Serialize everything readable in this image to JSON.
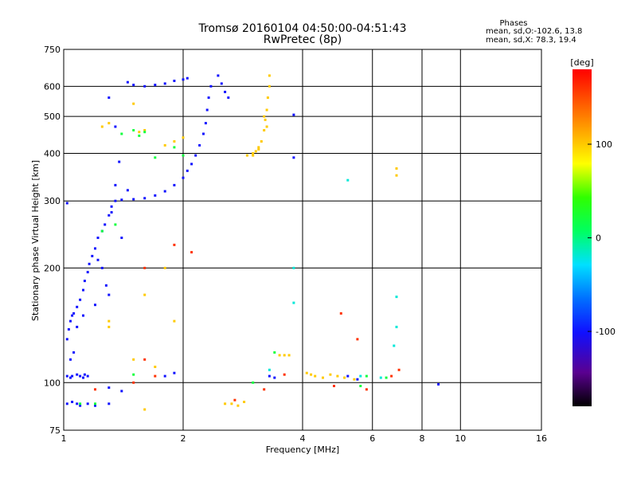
{
  "chart_data": {
    "type": "scatter",
    "title": "Tromsø 20160104 04:50:00-04:51:43",
    "subtitle": "RwPretec (8p)",
    "xlabel": "Frequency [MHz]",
    "ylabel": "Stationary phase Virtual Height [km]",
    "x_scale": "log",
    "y_scale": "log",
    "xlim": [
      1,
      16
    ],
    "ylim": [
      75,
      750
    ],
    "x_ticks": [
      1,
      2,
      4,
      6,
      8,
      10,
      16
    ],
    "y_ticks": [
      75,
      100,
      200,
      300,
      400,
      500,
      600,
      750
    ],
    "grid": true,
    "stats": {
      "heading": "Phases",
      "line_o": "mean, sd,O:-102.6, 13.8",
      "line_x": "mean, sd,X: 78.3, 19.4"
    },
    "colorbar": {
      "label": "[deg]",
      "min": -180,
      "max": 180,
      "ticks": [
        {
          "value": 100,
          "label": "100"
        },
        {
          "value": 0,
          "label": "0"
        },
        {
          "value": -100,
          "label": "-100"
        }
      ]
    },
    "series": [
      {
        "points": [
          [
            1.02,
            104
          ],
          [
            1.05,
            104
          ],
          [
            1.08,
            105
          ],
          [
            1.1,
            104
          ],
          [
            1.13,
            105
          ],
          [
            1.15,
            104
          ],
          [
            1.04,
            103
          ],
          [
            1.12,
            103
          ],
          [
            1.02,
            88
          ],
          [
            1.05,
            89
          ],
          [
            1.08,
            88
          ],
          [
            1.1,
            87
          ],
          [
            1.15,
            88
          ],
          [
            1.2,
            87
          ],
          [
            1.3,
            88
          ],
          [
            1.02,
            130
          ],
          [
            1.03,
            138
          ],
          [
            1.04,
            145
          ],
          [
            1.05,
            150
          ],
          [
            1.06,
            152
          ],
          [
            1.08,
            158
          ],
          [
            1.1,
            165
          ],
          [
            1.12,
            175
          ],
          [
            1.13,
            185
          ],
          [
            1.15,
            195
          ],
          [
            1.16,
            205
          ],
          [
            1.18,
            215
          ],
          [
            1.2,
            225
          ],
          [
            1.22,
            240
          ],
          [
            1.25,
            250
          ],
          [
            1.27,
            260
          ],
          [
            1.3,
            275
          ],
          [
            1.32,
            290
          ],
          [
            1.35,
            300
          ],
          [
            1.4,
            302
          ],
          [
            1.5,
            303
          ],
          [
            1.6,
            305
          ],
          [
            1.7,
            310
          ],
          [
            1.8,
            318
          ],
          [
            1.9,
            330
          ],
          [
            2.0,
            345
          ],
          [
            2.05,
            360
          ],
          [
            2.1,
            375
          ],
          [
            2.15,
            395
          ],
          [
            2.2,
            420
          ],
          [
            2.25,
            450
          ],
          [
            2.28,
            480
          ],
          [
            2.3,
            520
          ],
          [
            2.32,
            560
          ],
          [
            2.35,
            600
          ],
          [
            1.45,
            615
          ],
          [
            1.5,
            605
          ],
          [
            1.6,
            600
          ],
          [
            1.7,
            605
          ],
          [
            1.8,
            610
          ],
          [
            1.9,
            620
          ],
          [
            2.0,
            625
          ],
          [
            2.05,
            630
          ],
          [
            2.45,
            640
          ],
          [
            2.5,
            610
          ],
          [
            2.55,
            580
          ],
          [
            2.6,
            560
          ],
          [
            1.25,
            200
          ],
          [
            1.22,
            210
          ],
          [
            1.28,
            180
          ],
          [
            1.3,
            170
          ],
          [
            1.2,
            160
          ],
          [
            1.12,
            150
          ],
          [
            1.08,
            140
          ],
          [
            1.06,
            120
          ],
          [
            1.04,
            115
          ],
          [
            1.02,
            296
          ],
          [
            1.3,
            560
          ],
          [
            1.35,
            470
          ],
          [
            1.38,
            380
          ],
          [
            1.35,
            330
          ],
          [
            1.32,
            280
          ],
          [
            1.4,
            240
          ],
          [
            1.45,
            320
          ],
          [
            3.3,
            104
          ],
          [
            3.4,
            103
          ],
          [
            5.5,
            102
          ],
          [
            5.2,
            104
          ],
          [
            3.8,
            505
          ],
          [
            3.8,
            390
          ],
          [
            8.8,
            99
          ],
          [
            1.3,
            97
          ],
          [
            1.4,
            95
          ],
          [
            1.8,
            104
          ],
          [
            1.9,
            106
          ]
        ],
        "color_value": -100
      },
      {
        "points": [
          [
            3.0,
            400
          ],
          [
            3.05,
            405
          ],
          [
            3.1,
            415
          ],
          [
            3.15,
            430
          ],
          [
            3.2,
            460
          ],
          [
            3.22,
            490
          ],
          [
            3.25,
            520
          ],
          [
            3.27,
            560
          ],
          [
            3.3,
            600
          ],
          [
            3.3,
            640
          ],
          [
            2.9,
            395
          ],
          [
            3.0,
            395
          ],
          [
            3.1,
            410
          ],
          [
            3.2,
            500
          ],
          [
            3.25,
            470
          ],
          [
            2.55,
            88
          ],
          [
            2.65,
            88
          ],
          [
            2.75,
            87
          ],
          [
            2.85,
            89
          ],
          [
            3.5,
            118
          ],
          [
            3.6,
            118
          ],
          [
            3.7,
            118
          ],
          [
            4.1,
            106
          ],
          [
            4.3,
            104
          ],
          [
            4.5,
            103
          ],
          [
            4.7,
            105
          ],
          [
            4.9,
            104
          ],
          [
            5.1,
            103
          ],
          [
            5.4,
            102
          ],
          [
            1.5,
            540
          ],
          [
            1.55,
            455
          ],
          [
            1.6,
            460
          ],
          [
            1.8,
            420
          ],
          [
            1.9,
            430
          ],
          [
            2.0,
            440
          ],
          [
            1.3,
            480
          ],
          [
            1.25,
            470
          ],
          [
            1.3,
            140
          ],
          [
            1.3,
            145
          ],
          [
            1.8,
            200
          ],
          [
            1.6,
            170
          ],
          [
            1.5,
            115
          ],
          [
            1.9,
            145
          ],
          [
            1.7,
            110
          ],
          [
            1.6,
            85
          ],
          [
            4.2,
            105
          ],
          [
            6.9,
            350
          ],
          [
            6.9,
            365
          ]
        ],
        "color_value": 100
      },
      {
        "points": [
          [
            1.5,
            460
          ],
          [
            1.6,
            455
          ],
          [
            1.55,
            445
          ],
          [
            1.7,
            390
          ],
          [
            1.9,
            415
          ],
          [
            2.0,
            395
          ],
          [
            1.4,
            450
          ],
          [
            1.35,
            260
          ],
          [
            3.4,
            120
          ],
          [
            1.5,
            105
          ],
          [
            5.6,
            98
          ],
          [
            5.8,
            104
          ],
          [
            6.5,
            103
          ],
          [
            1.1,
            88
          ],
          [
            1.2,
            88
          ],
          [
            3.0,
            100
          ],
          [
            1.25,
            250
          ]
        ],
        "color_value": 20
      },
      {
        "points": [
          [
            1.9,
            230
          ],
          [
            2.1,
            220
          ],
          [
            1.6,
            200
          ],
          [
            1.6,
            115
          ],
          [
            1.7,
            104
          ],
          [
            2.7,
            90
          ],
          [
            3.2,
            96
          ],
          [
            3.6,
            105
          ],
          [
            5.0,
            152
          ],
          [
            5.5,
            130
          ],
          [
            7.0,
            108
          ],
          [
            6.7,
            104
          ],
          [
            4.8,
            98
          ],
          [
            5.8,
            96
          ],
          [
            1.2,
            96
          ],
          [
            1.5,
            100
          ]
        ],
        "color_value": 160
      },
      {
        "points": [
          [
            3.8,
            200
          ],
          [
            3.8,
            162
          ],
          [
            5.2,
            340
          ],
          [
            6.9,
            168
          ],
          [
            6.8,
            125
          ],
          [
            6.9,
            140
          ],
          [
            5.6,
            104
          ],
          [
            3.3,
            108
          ],
          [
            6.3,
            103
          ]
        ],
        "color_value": -20
      }
    ]
  }
}
